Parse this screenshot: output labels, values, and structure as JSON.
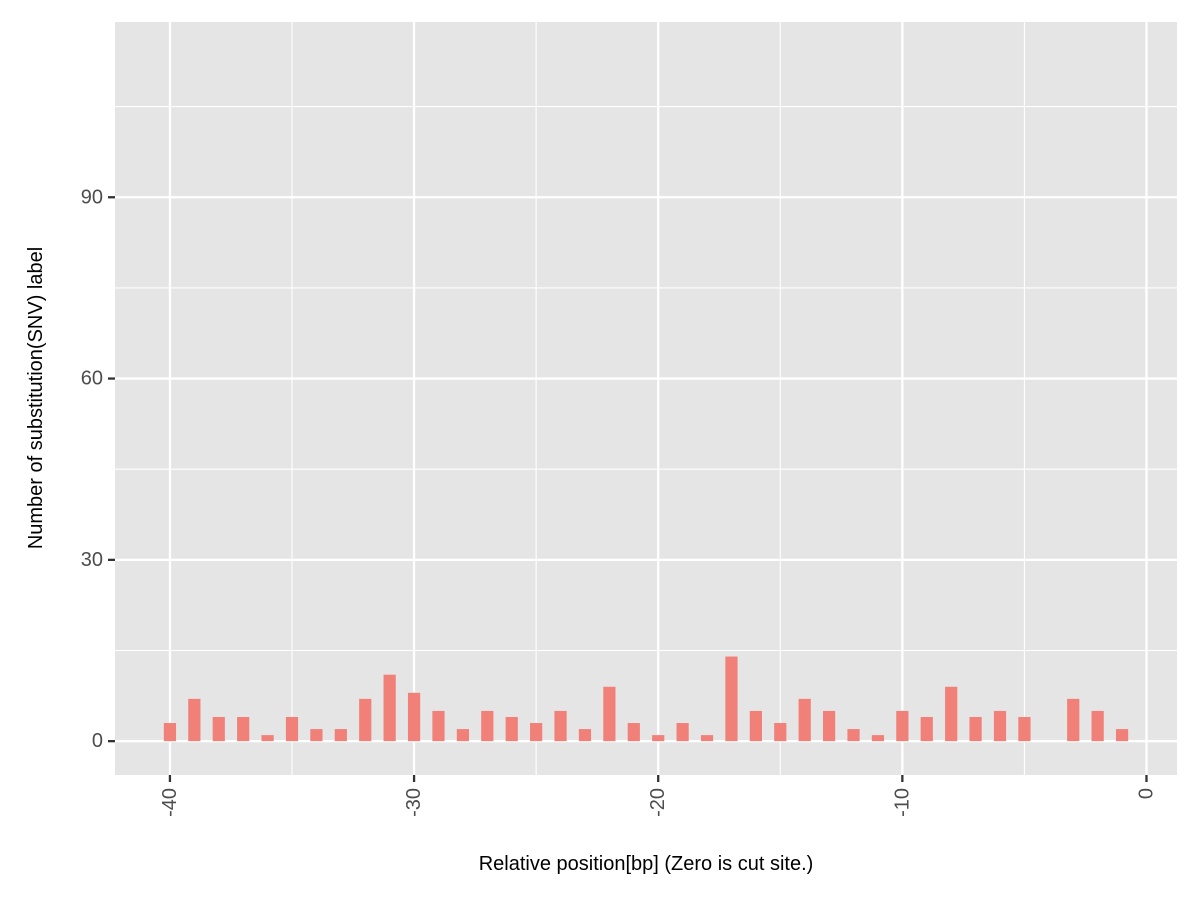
{
  "chart_data": {
    "type": "bar",
    "title": "",
    "xlabel": "Relative position[bp] (Zero is cut site.)",
    "ylabel": "Number of substitution(SNV) label",
    "xlim": [
      -42.25,
      1.25
    ],
    "ylim": [
      -5.6,
      119
    ],
    "x_ticks": [
      -40,
      -30,
      -20,
      -10,
      0
    ],
    "x_tick_labels": [
      "-40",
      "-30",
      "-20",
      "-10",
      "0"
    ],
    "y_ticks": [
      0,
      30,
      60,
      90
    ],
    "y_tick_labels": [
      "0",
      "30",
      "60",
      "90"
    ],
    "grid": true,
    "bar_color": "#F08078",
    "panel_color": "#E5E5E5",
    "grid_color": "#FFFFFF",
    "x": [
      -40,
      -39,
      -38,
      -37,
      -36,
      -35,
      -34,
      -33,
      -32,
      -31,
      -30,
      -29,
      -28,
      -27,
      -26,
      -25,
      -24,
      -23,
      -22,
      -21,
      -20,
      -19,
      -18,
      -17,
      -16,
      -15,
      -14,
      -13,
      -12,
      -11,
      -10,
      -9,
      -8,
      -7,
      -6,
      -5,
      -4,
      -3,
      -2,
      -1
    ],
    "values": [
      3,
      7,
      4,
      4,
      1,
      4,
      2,
      2,
      7,
      11,
      8,
      5,
      2,
      5,
      4,
      3,
      5,
      2,
      9,
      3,
      1,
      3,
      1,
      14,
      5,
      3,
      7,
      5,
      2,
      1,
      5,
      4,
      9,
      4,
      5,
      4,
      0,
      7,
      5,
      2
    ]
  }
}
